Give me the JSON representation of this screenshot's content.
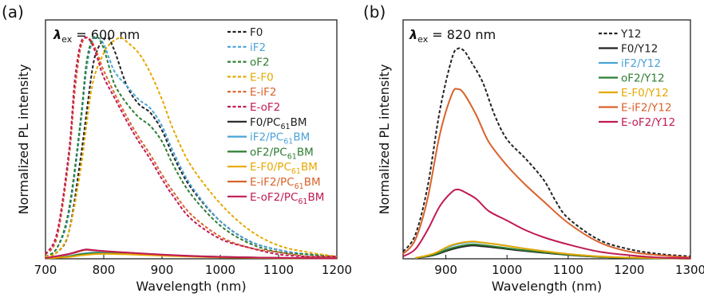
{
  "figure": {
    "panel_a_label": "(a)",
    "panel_b_label": "(b)"
  },
  "colors": {
    "F0": "#222222",
    "iF2": "#4aa3d8",
    "oF2": "#2e7d32",
    "E-F0": "#e6a800",
    "E-iF2": "#d9622b",
    "E-oF2": "#c01a55",
    "Y12": "#222222"
  },
  "chart_data": [
    {
      "type": "line",
      "panel": "(a)",
      "annotation": "λex = 600 nm",
      "xlabel": "Wavelength (nm)",
      "ylabel": "Normalized PL intensity",
      "xlim": [
        700,
        1200
      ],
      "ylim": [
        0,
        1.08
      ],
      "xticks": [
        700,
        800,
        900,
        1000,
        1100,
        1200
      ],
      "grid": false,
      "legend_position": "top-right",
      "series": [
        {
          "name": "F0",
          "color": "F0",
          "dash": true,
          "x": [
            700,
            720,
            740,
            760,
            780,
            790,
            800,
            805,
            810,
            820,
            840,
            860,
            880,
            900,
            920,
            950,
            1000,
            1050,
            1100,
            1150,
            1200
          ],
          "y": [
            0.01,
            0.03,
            0.12,
            0.45,
            0.85,
            0.95,
            0.99,
            1.0,
            0.99,
            0.93,
            0.78,
            0.7,
            0.66,
            0.58,
            0.46,
            0.32,
            0.17,
            0.08,
            0.04,
            0.02,
            0.01
          ]
        },
        {
          "name": "iF2",
          "color": "iF2",
          "dash": true,
          "x": [
            700,
            720,
            740,
            760,
            770,
            780,
            790,
            800,
            810,
            820,
            840,
            860,
            880,
            900,
            920,
            950,
            1000,
            1050,
            1100,
            1150,
            1200
          ],
          "y": [
            0.01,
            0.05,
            0.2,
            0.6,
            0.85,
            0.98,
            1.0,
            0.97,
            0.9,
            0.84,
            0.78,
            0.72,
            0.68,
            0.6,
            0.48,
            0.33,
            0.17,
            0.08,
            0.04,
            0.02,
            0.01
          ]
        },
        {
          "name": "oF2",
          "color": "oF2",
          "dash": true,
          "x": [
            700,
            720,
            740,
            760,
            770,
            780,
            790,
            800,
            810,
            820,
            840,
            860,
            880,
            900,
            920,
            950,
            1000,
            1050,
            1100,
            1150,
            1200
          ],
          "y": [
            0.01,
            0.05,
            0.22,
            0.62,
            0.88,
            0.99,
            1.0,
            0.95,
            0.86,
            0.78,
            0.7,
            0.64,
            0.6,
            0.53,
            0.42,
            0.29,
            0.15,
            0.07,
            0.03,
            0.02,
            0.01
          ]
        },
        {
          "name": "E-F0",
          "color": "E-F0",
          "dash": true,
          "x": [
            700,
            720,
            740,
            760,
            780,
            800,
            810,
            820,
            830,
            840,
            860,
            880,
            900,
            920,
            950,
            1000,
            1050,
            1100,
            1150,
            1200
          ],
          "y": [
            0.01,
            0.03,
            0.12,
            0.4,
            0.78,
            0.93,
            0.97,
            0.99,
            1.0,
            0.98,
            0.93,
            0.84,
            0.72,
            0.58,
            0.42,
            0.25,
            0.13,
            0.06,
            0.03,
            0.01
          ]
        },
        {
          "name": "E-iF2",
          "color": "E-iF2",
          "dash": true,
          "x": [
            700,
            720,
            740,
            750,
            760,
            770,
            780,
            790,
            800,
            820,
            840,
            860,
            880,
            900,
            920,
            950,
            1000,
            1050,
            1100,
            1150,
            1200
          ],
          "y": [
            0.02,
            0.1,
            0.45,
            0.75,
            0.95,
            1.0,
            0.98,
            0.92,
            0.85,
            0.74,
            0.64,
            0.55,
            0.47,
            0.38,
            0.3,
            0.2,
            0.1,
            0.05,
            0.03,
            0.01,
            0.01
          ]
        },
        {
          "name": "E-oF2",
          "color": "E-oF2",
          "dash": true,
          "x": [
            700,
            720,
            740,
            750,
            760,
            770,
            780,
            790,
            800,
            820,
            840,
            860,
            880,
            900,
            920,
            950,
            1000,
            1050,
            1100,
            1150,
            1200
          ],
          "y": [
            0.02,
            0.12,
            0.48,
            0.8,
            0.97,
            1.0,
            0.97,
            0.9,
            0.82,
            0.72,
            0.62,
            0.53,
            0.45,
            0.36,
            0.28,
            0.18,
            0.09,
            0.05,
            0.02,
            0.01,
            0.01
          ]
        },
        {
          "name": "F0/PC61BM",
          "label_main": "F0/PC",
          "label_sub": "61",
          "label_tail": "BM",
          "color": "F0",
          "dash": false,
          "x": [
            700,
            740,
            760,
            780,
            800,
            830,
            860,
            900,
            950,
            1000,
            1100,
            1200
          ],
          "y": [
            0.002,
            0.01,
            0.02,
            0.025,
            0.026,
            0.024,
            0.02,
            0.016,
            0.012,
            0.008,
            0.004,
            0.002
          ]
        },
        {
          "name": "iF2/PC61BM",
          "label_main": "iF2/PC",
          "label_sub": "61",
          "label_tail": "BM",
          "color": "iF2",
          "dash": false,
          "x": [
            700,
            740,
            760,
            780,
            800,
            830,
            860,
            900,
            950,
            1000,
            1100,
            1200
          ],
          "y": [
            0.002,
            0.012,
            0.022,
            0.028,
            0.03,
            0.028,
            0.024,
            0.018,
            0.013,
            0.009,
            0.004,
            0.002
          ]
        },
        {
          "name": "oF2/PC61BM",
          "label_main": "oF2/PC",
          "label_sub": "61",
          "label_tail": "BM",
          "color": "oF2",
          "dash": false,
          "x": [
            700,
            740,
            760,
            780,
            800,
            830,
            860,
            900,
            950,
            1000,
            1100,
            1200
          ],
          "y": [
            0.002,
            0.01,
            0.02,
            0.024,
            0.025,
            0.023,
            0.02,
            0.015,
            0.011,
            0.007,
            0.003,
            0.002
          ]
        },
        {
          "name": "E-F0/PC61BM",
          "label_main": "E-F0/PC",
          "label_sub": "61",
          "label_tail": "BM",
          "color": "E-F0",
          "dash": false,
          "x": [
            700,
            740,
            760,
            780,
            800,
            830,
            860,
            900,
            950,
            1000,
            1100,
            1200
          ],
          "y": [
            0.002,
            0.008,
            0.015,
            0.02,
            0.022,
            0.021,
            0.018,
            0.014,
            0.01,
            0.007,
            0.003,
            0.002
          ]
        },
        {
          "name": "E-iF2/PC61BM",
          "label_main": "E-iF2/PC",
          "label_sub": "61",
          "label_tail": "BM",
          "color": "E-iF2",
          "dash": false,
          "x": [
            700,
            740,
            760,
            770,
            780,
            800,
            830,
            860,
            900,
            950,
            1000,
            1100,
            1200
          ],
          "y": [
            0.003,
            0.02,
            0.035,
            0.04,
            0.038,
            0.034,
            0.029,
            0.024,
            0.018,
            0.012,
            0.008,
            0.004,
            0.002
          ]
        },
        {
          "name": "E-oF2/PC61BM",
          "label_main": "E-oF2/PC",
          "label_sub": "61",
          "label_tail": "BM",
          "color": "E-oF2",
          "dash": false,
          "x": [
            700,
            740,
            760,
            770,
            780,
            800,
            830,
            860,
            900,
            950,
            1000,
            1100,
            1200
          ],
          "y": [
            0.003,
            0.022,
            0.037,
            0.042,
            0.04,
            0.035,
            0.03,
            0.025,
            0.019,
            0.013,
            0.009,
            0.004,
            0.002
          ]
        }
      ]
    },
    {
      "type": "line",
      "panel": "(b)",
      "annotation": "λex = 820 nm",
      "xlabel": "Wavelength (nm)",
      "ylabel": "Normalized PL intensity",
      "xlim": [
        830,
        1300
      ],
      "ylim": [
        0,
        1.0
      ],
      "xticks": [
        900,
        1000,
        1100,
        1200,
        1300
      ],
      "grid": false,
      "legend_position": "top-right",
      "series": [
        {
          "name": "Y12",
          "color": "Y12",
          "dash": true,
          "x": [
            830,
            850,
            870,
            890,
            910,
            920,
            930,
            940,
            960,
            980,
            1000,
            1030,
            1060,
            1080,
            1100,
            1150,
            1200,
            1250,
            1300
          ],
          "y": [
            0.03,
            0.1,
            0.3,
            0.62,
            0.84,
            0.88,
            0.87,
            0.83,
            0.74,
            0.6,
            0.5,
            0.42,
            0.33,
            0.24,
            0.17,
            0.08,
            0.04,
            0.02,
            0.01
          ]
        },
        {
          "name": "F0/Y12",
          "color": "F0",
          "dash": false,
          "x": [
            850,
            880,
            910,
            940,
            960,
            990,
            1020,
            1060,
            1100,
            1150,
            1200,
            1300
          ],
          "y": [
            0.003,
            0.015,
            0.04,
            0.055,
            0.052,
            0.044,
            0.035,
            0.025,
            0.016,
            0.008,
            0.004,
            0.001
          ]
        },
        {
          "name": "iF2/Y12",
          "color": "iF2",
          "dash": false,
          "x": [
            850,
            880,
            910,
            940,
            960,
            990,
            1020,
            1060,
            1100,
            1150,
            1200,
            1300
          ],
          "y": [
            0.003,
            0.02,
            0.055,
            0.07,
            0.067,
            0.058,
            0.046,
            0.032,
            0.02,
            0.01,
            0.005,
            0.001
          ]
        },
        {
          "name": "oF2/Y12",
          "color": "oF2",
          "dash": false,
          "x": [
            850,
            880,
            910,
            940,
            960,
            990,
            1020,
            1060,
            1100,
            1150,
            1200,
            1300
          ],
          "y": [
            0.003,
            0.017,
            0.045,
            0.06,
            0.057,
            0.048,
            0.038,
            0.027,
            0.017,
            0.008,
            0.004,
            0.001
          ]
        },
        {
          "name": "E-F0/Y12",
          "color": "E-F0",
          "dash": false,
          "x": [
            850,
            880,
            910,
            940,
            960,
            990,
            1020,
            1060,
            1100,
            1150,
            1200,
            1300
          ],
          "y": [
            0.003,
            0.022,
            0.058,
            0.072,
            0.068,
            0.058,
            0.046,
            0.032,
            0.02,
            0.01,
            0.005,
            0.001
          ]
        },
        {
          "name": "E-iF2/Y12",
          "color": "E-iF2",
          "dash": false,
          "x": [
            830,
            850,
            870,
            890,
            910,
            920,
            930,
            950,
            970,
            1000,
            1030,
            1060,
            1100,
            1150,
            1200,
            1250,
            1300
          ],
          "y": [
            0.02,
            0.08,
            0.25,
            0.52,
            0.69,
            0.71,
            0.69,
            0.6,
            0.49,
            0.39,
            0.31,
            0.24,
            0.15,
            0.07,
            0.03,
            0.015,
            0.005
          ]
        },
        {
          "name": "E-oF2/Y12",
          "color": "E-oF2",
          "dash": false,
          "x": [
            830,
            850,
            870,
            890,
            910,
            920,
            930,
            950,
            970,
            1000,
            1030,
            1060,
            1100,
            1150,
            1200,
            1250,
            1300
          ],
          "y": [
            0.01,
            0.04,
            0.12,
            0.22,
            0.28,
            0.29,
            0.28,
            0.25,
            0.2,
            0.16,
            0.12,
            0.09,
            0.06,
            0.03,
            0.015,
            0.005,
            0.002
          ]
        }
      ]
    }
  ]
}
